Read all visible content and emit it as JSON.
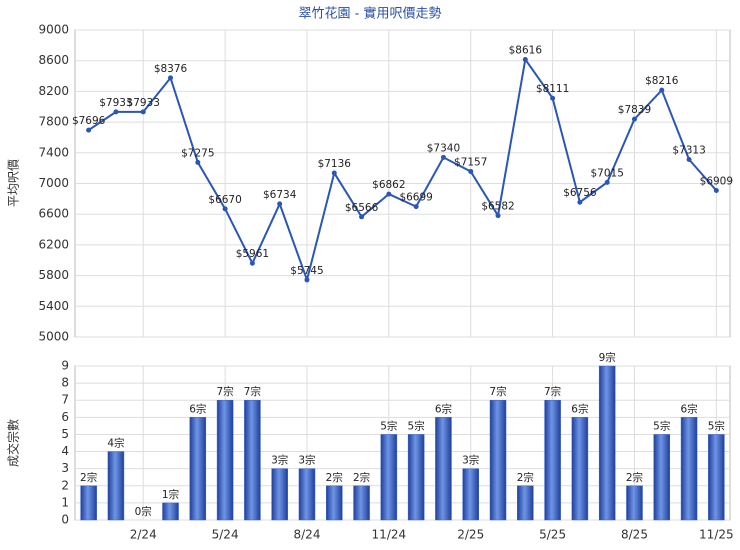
{
  "chart_data": [
    {
      "type": "line",
      "title": "翠竹花園 - 實用呎價走勢",
      "y_label": "平均呎價",
      "color": "#2a56b8",
      "values": [
        7696,
        7933,
        7933,
        8376,
        7275,
        6670,
        5961,
        6734,
        5745,
        7136,
        6566,
        6862,
        6699,
        7340,
        7157,
        6582,
        8616,
        8111,
        6756,
        7015,
        7839,
        8216,
        7313,
        6909
      ],
      "value_labels": [
        "$7696",
        "$7933",
        "$7933",
        "$8376",
        "$7275",
        "$6670",
        "$5961",
        "$6734",
        "$5745",
        "$7136",
        "$6566",
        "$6862",
        "$6699",
        "$7340",
        "$7157",
        "$6582",
        "$8616",
        "$8111",
        "$6756",
        "$7015",
        "$7839",
        "$8216",
        "$7313",
        "$6909"
      ],
      "ylim": [
        5000,
        9000
      ],
      "yticks": [
        5000,
        5400,
        5800,
        6200,
        6600,
        7000,
        7400,
        7800,
        8200,
        8600,
        9000
      ],
      "grid": true
    },
    {
      "type": "bar",
      "y_label": "成交宗數",
      "color": "#3a62c8",
      "categories": [
        null,
        null,
        "2/24",
        null,
        null,
        "5/24",
        null,
        null,
        "8/24",
        null,
        null,
        "11/24",
        null,
        null,
        "2/25",
        null,
        null,
        "5/25",
        null,
        null,
        "8/25",
        null,
        null,
        "11/25"
      ],
      "values": [
        2,
        4,
        0,
        1,
        6,
        7,
        7,
        3,
        3,
        2,
        2,
        5,
        5,
        6,
        3,
        7,
        2,
        7,
        6,
        9,
        2,
        5,
        6,
        5
      ],
      "value_labels": [
        "2宗",
        "4宗",
        "0宗",
        "1宗",
        "6宗",
        "7宗",
        "7宗",
        "3宗",
        "3宗",
        "2宗",
        "2宗",
        "5宗",
        "5宗",
        "6宗",
        "3宗",
        "7宗",
        "2宗",
        "7宗",
        "6宗",
        "9宗",
        "2宗",
        "5宗",
        "6宗",
        "5宗"
      ],
      "ylim": [
        0,
        9
      ],
      "yticks": [
        0,
        1,
        2,
        3,
        4,
        5,
        6,
        7,
        8,
        9
      ],
      "grid": true
    }
  ]
}
